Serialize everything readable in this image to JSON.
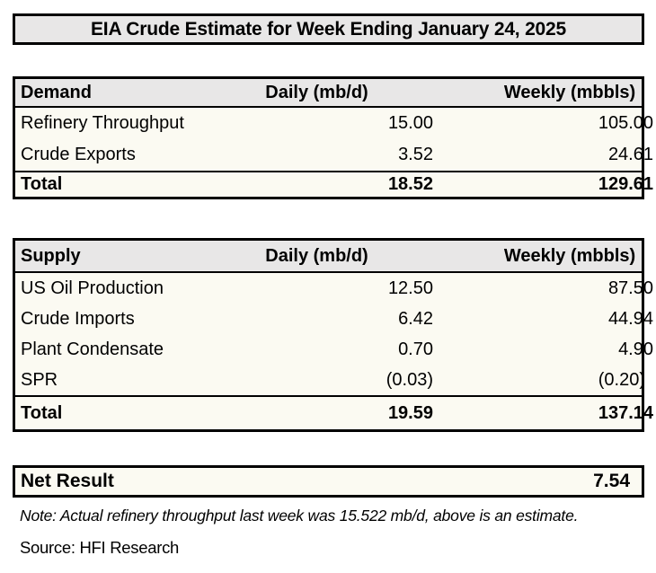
{
  "title": "EIA Crude Estimate for Week Ending January 24, 2025",
  "columns": {
    "daily": "Daily (mb/d)",
    "weekly": "Weekly (mbbls)"
  },
  "demand": {
    "header": "Demand",
    "rows": [
      {
        "label": "Refinery Throughput",
        "daily": "15.00",
        "weekly": "105.00"
      },
      {
        "label": "Crude Exports",
        "daily": "3.52",
        "weekly": "24.61"
      }
    ],
    "total": {
      "label": "Total",
      "daily": "18.52",
      "weekly": "129.61"
    }
  },
  "supply": {
    "header": "Supply",
    "rows": [
      {
        "label": "US Oil Production",
        "daily": "12.50",
        "weekly": "87.50"
      },
      {
        "label": "Crude Imports",
        "daily": "6.42",
        "weekly": "44.94"
      },
      {
        "label": "Plant Condensate",
        "daily": "0.70",
        "weekly": "4.90"
      },
      {
        "label": "SPR",
        "daily": "(0.03)",
        "weekly": "(0.20)"
      }
    ],
    "total": {
      "label": "Total",
      "daily": "19.59",
      "weekly": "137.14"
    }
  },
  "net_result": {
    "label": "Net Result",
    "value": "7.54"
  },
  "note": "Note: Actual refinery throughput last week was 15.522 mb/d, above is an estimate.",
  "source": "Source: HFI Research",
  "colors": {
    "header_bg": "#E8E7E7",
    "row_bg": "#FBFAF2",
    "border": "#000000",
    "page_bg": "#FFFFFF",
    "text": "#000000"
  },
  "chart_data": [
    {
      "type": "table",
      "title": "EIA Crude Estimate for Week Ending January 24, 2025",
      "columns": [
        "Demand",
        "Daily (mb/d)",
        "Weekly (mbbls)"
      ],
      "rows": [
        [
          "Refinery Throughput",
          15.0,
          105.0
        ],
        [
          "Crude Exports",
          3.52,
          24.61
        ],
        [
          "Total",
          18.52,
          129.61
        ]
      ]
    },
    {
      "type": "table",
      "columns": [
        "Supply",
        "Daily (mb/d)",
        "Weekly (mbbls)"
      ],
      "rows": [
        [
          "US Oil Production",
          12.5,
          87.5
        ],
        [
          "Crude Imports",
          6.42,
          44.94
        ],
        [
          "Plant Condensate",
          0.7,
          4.9
        ],
        [
          "SPR",
          -0.03,
          -0.2
        ],
        [
          "Total",
          19.59,
          137.14
        ]
      ]
    },
    {
      "type": "table",
      "columns": [
        "Net Result"
      ],
      "rows": [
        [
          "Net Result",
          7.54
        ]
      ]
    }
  ]
}
